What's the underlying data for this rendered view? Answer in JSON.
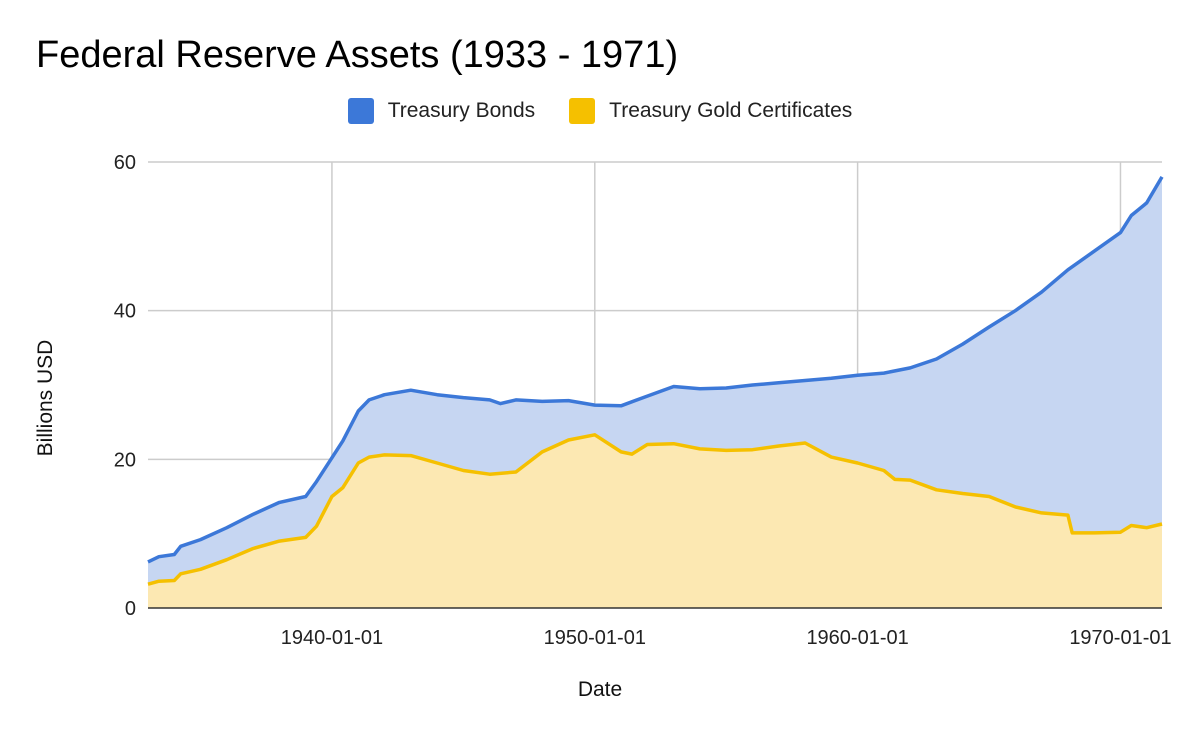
{
  "chart_data": {
    "type": "area",
    "title": "Federal Reserve Assets (1933 - 1971)",
    "xlabel": "Date",
    "ylabel": "Billions USD",
    "ylim": [
      0,
      60
    ],
    "yticks": [
      "0",
      "20",
      "40",
      "60"
    ],
    "ytick_values": [
      0,
      20,
      40,
      60
    ],
    "xlim": [
      "1933-01-01",
      "1971-08-01"
    ],
    "xticks": [
      "1940-01-01",
      "1950-01-01",
      "1960-01-01",
      "1970-01-01"
    ],
    "grid": true,
    "legend_position": "top",
    "series": [
      {
        "name": "Treasury Bonds",
        "color": "#3c78d8",
        "fill": "#c6d6f2",
        "points": [
          [
            "1933-01-01",
            6.2
          ],
          [
            "1933-06-01",
            6.9
          ],
          [
            "1934-01-01",
            7.2
          ],
          [
            "1934-04-01",
            8.3
          ],
          [
            "1935-01-01",
            9.2
          ],
          [
            "1936-01-01",
            10.8
          ],
          [
            "1937-01-01",
            12.6
          ],
          [
            "1938-01-01",
            14.2
          ],
          [
            "1939-01-01",
            15.0
          ],
          [
            "1939-06-01",
            17.0
          ],
          [
            "1940-01-01",
            20.2
          ],
          [
            "1940-06-01",
            22.5
          ],
          [
            "1941-01-01",
            26.5
          ],
          [
            "1941-06-01",
            28.0
          ],
          [
            "1942-01-01",
            28.7
          ],
          [
            "1943-01-01",
            29.3
          ],
          [
            "1944-01-01",
            28.7
          ],
          [
            "1945-01-01",
            28.3
          ],
          [
            "1946-01-01",
            28.0
          ],
          [
            "1946-06-01",
            27.5
          ],
          [
            "1947-01-01",
            28.0
          ],
          [
            "1948-01-01",
            27.8
          ],
          [
            "1949-01-01",
            27.9
          ],
          [
            "1950-01-01",
            27.3
          ],
          [
            "1951-01-01",
            27.2
          ],
          [
            "1952-01-01",
            28.5
          ],
          [
            "1953-01-01",
            29.8
          ],
          [
            "1954-01-01",
            29.5
          ],
          [
            "1955-01-01",
            29.6
          ],
          [
            "1956-01-01",
            30.0
          ],
          [
            "1957-01-01",
            30.3
          ],
          [
            "1958-01-01",
            30.6
          ],
          [
            "1959-01-01",
            30.9
          ],
          [
            "1960-01-01",
            31.3
          ],
          [
            "1961-01-01",
            31.6
          ],
          [
            "1962-01-01",
            32.3
          ],
          [
            "1963-01-01",
            33.5
          ],
          [
            "1964-01-01",
            35.5
          ],
          [
            "1965-01-01",
            37.8
          ],
          [
            "1966-01-01",
            40.0
          ],
          [
            "1967-01-01",
            42.5
          ],
          [
            "1968-01-01",
            45.5
          ],
          [
            "1969-01-01",
            48.0
          ],
          [
            "1970-01-01",
            50.5
          ],
          [
            "1970-06-01",
            52.8
          ],
          [
            "1971-01-01",
            54.5
          ],
          [
            "1971-08-01",
            58.0
          ]
        ]
      },
      {
        "name": "Treasury Gold Certificates",
        "color": "#f5c000",
        "fill": "#fce8b2",
        "points": [
          [
            "1933-01-01",
            3.2
          ],
          [
            "1933-06-01",
            3.6
          ],
          [
            "1934-01-01",
            3.7
          ],
          [
            "1934-04-01",
            4.6
          ],
          [
            "1935-01-01",
            5.2
          ],
          [
            "1936-01-01",
            6.5
          ],
          [
            "1937-01-01",
            8.0
          ],
          [
            "1938-01-01",
            9.0
          ],
          [
            "1939-01-01",
            9.5
          ],
          [
            "1939-06-01",
            11.0
          ],
          [
            "1940-01-01",
            15.0
          ],
          [
            "1940-06-01",
            16.2
          ],
          [
            "1941-01-01",
            19.5
          ],
          [
            "1941-06-01",
            20.3
          ],
          [
            "1942-01-01",
            20.6
          ],
          [
            "1943-01-01",
            20.5
          ],
          [
            "1944-01-01",
            19.5
          ],
          [
            "1945-01-01",
            18.5
          ],
          [
            "1946-01-01",
            18.0
          ],
          [
            "1947-01-01",
            18.3
          ],
          [
            "1948-01-01",
            21.0
          ],
          [
            "1949-01-01",
            22.6
          ],
          [
            "1950-01-01",
            23.3
          ],
          [
            "1951-01-01",
            21.0
          ],
          [
            "1951-06-01",
            20.7
          ],
          [
            "1952-01-01",
            22.0
          ],
          [
            "1953-01-01",
            22.1
          ],
          [
            "1954-01-01",
            21.4
          ],
          [
            "1955-01-01",
            21.2
          ],
          [
            "1956-01-01",
            21.3
          ],
          [
            "1957-01-01",
            21.8
          ],
          [
            "1958-01-01",
            22.2
          ],
          [
            "1959-01-01",
            20.3
          ],
          [
            "1960-01-01",
            19.5
          ],
          [
            "1961-01-01",
            18.5
          ],
          [
            "1961-06-01",
            17.3
          ],
          [
            "1962-01-01",
            17.2
          ],
          [
            "1963-01-01",
            15.9
          ],
          [
            "1964-01-01",
            15.4
          ],
          [
            "1965-01-01",
            15.0
          ],
          [
            "1966-01-01",
            13.6
          ],
          [
            "1967-01-01",
            12.8
          ],
          [
            "1968-01-01",
            12.5
          ],
          [
            "1968-03-01",
            10.1
          ],
          [
            "1969-01-01",
            10.1
          ],
          [
            "1970-01-01",
            10.2
          ],
          [
            "1970-06-01",
            11.1
          ],
          [
            "1971-01-01",
            10.8
          ],
          [
            "1971-08-01",
            11.3
          ]
        ]
      }
    ]
  }
}
